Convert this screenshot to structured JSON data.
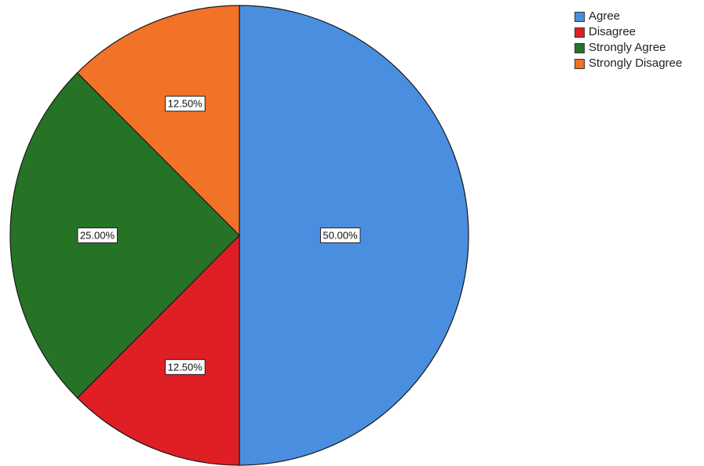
{
  "chart_data": {
    "type": "pie",
    "slices": [
      {
        "label": "Agree",
        "value": 50.0,
        "display": "50.00%",
        "color": "#4a8ee0"
      },
      {
        "label": "Disagree",
        "value": 12.5,
        "display": "12.50%",
        "color": "#e01e25"
      },
      {
        "label": "Strongly Agree",
        "value": 25.0,
        "display": "25.00%",
        "color": "#267326"
      },
      {
        "label": "Strongly Disagree",
        "value": 12.5,
        "display": "12.50%",
        "color": "#f27227"
      }
    ],
    "start_angle": "12 o'clock",
    "direction": "clockwise",
    "legend_position": "top-right",
    "title": ""
  },
  "legend": {
    "items": [
      {
        "label": "Agree",
        "color": "#4a8ee0"
      },
      {
        "label": "Disagree",
        "color": "#e01e25"
      },
      {
        "label": "Strongly Agree",
        "color": "#267326"
      },
      {
        "label": "Strongly Disagree",
        "color": "#f27227"
      }
    ]
  }
}
